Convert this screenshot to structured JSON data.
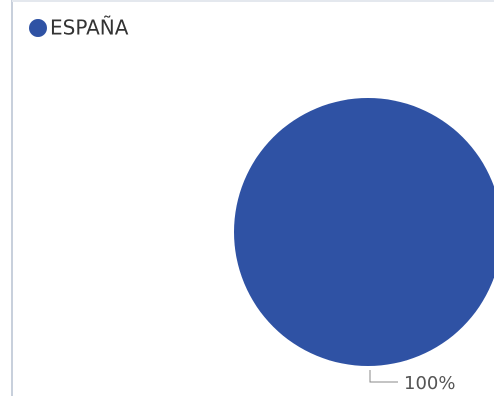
{
  "chart_data": {
    "type": "pie",
    "categories": [
      "ESPAÑA"
    ],
    "values": [
      100
    ],
    "value_labels": [
      "100%"
    ],
    "colors": [
      "#2f52a4"
    ],
    "legend": "top-left"
  }
}
